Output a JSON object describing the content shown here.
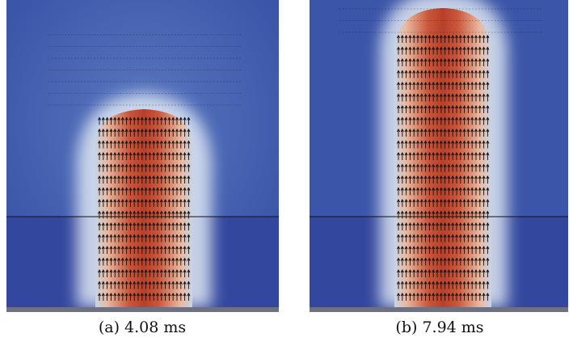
{
  "figure": {
    "panels": [
      {
        "caption": "(a) 4.08 ms"
      },
      {
        "caption": "(b) 7.94 ms"
      }
    ]
  }
}
